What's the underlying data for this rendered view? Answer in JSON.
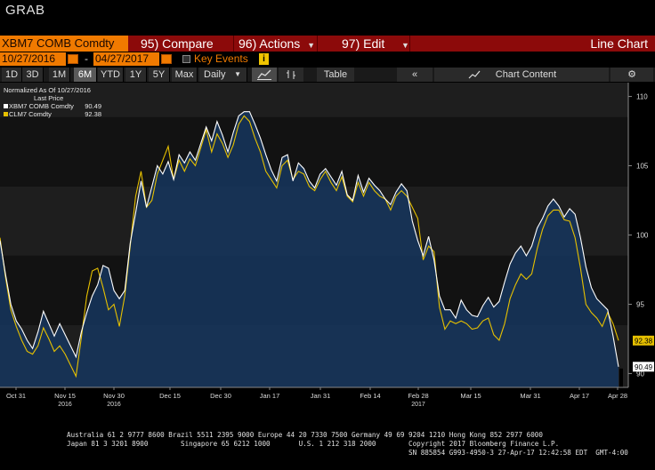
{
  "app": {
    "title": "GRAB"
  },
  "toolbar": {
    "ticker": "XBM7 COMB Comdty",
    "compare": {
      "num": "95)",
      "label": "Compare"
    },
    "actions": {
      "num": "96)",
      "label": "Actions"
    },
    "edit": {
      "num": "97)",
      "label": "Edit"
    },
    "view_title": "Line Chart"
  },
  "range": {
    "start": "10/27/2016",
    "end": "04/27/2017",
    "key_events": "Key Events",
    "info_badge": "i"
  },
  "periods": [
    "1D",
    "3D",
    "1M",
    "6M",
    "YTD",
    "1Y",
    "5Y",
    "Max"
  ],
  "active_period": "6M",
  "frequency": "Daily",
  "table_label": "Table",
  "chart_content_label": "Chart Content",
  "colors": {
    "accent_orange": "#f07a00",
    "cmd_red": "#8c0a0a",
    "series1": "#ffffff",
    "series2": "#e6c000",
    "area": "#16365e"
  },
  "legend": {
    "header": "Normalized As Of 10/27/2016",
    "sub": "Last Price",
    "items": [
      {
        "name": "XBM7 COMB Comdty",
        "value": "90.49",
        "color": "#ffffff"
      },
      {
        "name": "CLM7 Comdty",
        "value": "92.38",
        "color": "#e6c000"
      }
    ]
  },
  "chart_data": {
    "type": "line",
    "ylim": [
      89,
      111
    ],
    "y_ticks": [
      90,
      95,
      100,
      105,
      110
    ],
    "x_ticks": [
      {
        "label": "Oct 31",
        "year": ""
      },
      {
        "label": "Nov 15",
        "year": "2016"
      },
      {
        "label": "Nov 30",
        "year": "2016"
      },
      {
        "label": "Dec 15",
        "year": ""
      },
      {
        "label": "Dec 30",
        "year": ""
      },
      {
        "label": "Jan 17",
        "year": ""
      },
      {
        "label": "Jan 31",
        "year": ""
      },
      {
        "label": "Feb 14",
        "year": ""
      },
      {
        "label": "Feb 28",
        "year": "2017"
      },
      {
        "label": "Mar 15",
        "year": ""
      },
      {
        "label": "Mar 31",
        "year": ""
      },
      {
        "label": "Apr 17",
        "year": ""
      },
      {
        "label": "Apr 28",
        "year": ""
      }
    ],
    "series": [
      {
        "name": "XBM7 COMB Comdty",
        "last": "90.49",
        "values": [
          99.6,
          97.2,
          95.0,
          93.8,
          93.2,
          92.4,
          91.8,
          93.0,
          94.5,
          93.6,
          92.7,
          93.6,
          92.8,
          92.0,
          91.2,
          93.0,
          94.4,
          95.6,
          96.4,
          97.8,
          97.6,
          96.0,
          95.4,
          96.0,
          99.4,
          101.6,
          103.9,
          102.0,
          103.5,
          105.0,
          104.4,
          105.3,
          104.0,
          105.8,
          105.2,
          106.0,
          105.4,
          106.6,
          107.8,
          106.8,
          108.2,
          107.2,
          106.0,
          107.4,
          108.6,
          108.9,
          108.9,
          108.0,
          107.0,
          105.8,
          104.7,
          103.9,
          105.6,
          105.8,
          103.9,
          105.2,
          104.8,
          103.9,
          103.4,
          104.4,
          104.8,
          104.2,
          103.6,
          104.6,
          102.9,
          102.5,
          104.3,
          103.1,
          104.1,
          103.6,
          103.2,
          102.6,
          102.2,
          103.1,
          103.7,
          103.2,
          101.0,
          99.6,
          98.5,
          99.9,
          98.2,
          95.6,
          94.6,
          94.6,
          94.0,
          95.3,
          94.6,
          94.2,
          94.1,
          94.9,
          95.5,
          94.8,
          95.2,
          96.6,
          97.9,
          98.7,
          99.2,
          98.5,
          99.2,
          100.5,
          101.2,
          102.1,
          102.6,
          102.1,
          101.3,
          101.9,
          101.5,
          99.8,
          97.7,
          96.2,
          95.4,
          95.0,
          94.6,
          92.7,
          90.49
        ]
      },
      {
        "name": "CLM7 Comdty",
        "last": "92.38",
        "values": [
          99.8,
          97.0,
          94.6,
          93.4,
          92.4,
          91.6,
          91.4,
          92.0,
          93.3,
          92.5,
          91.6,
          92.0,
          91.4,
          90.6,
          89.8,
          92.6,
          95.6,
          97.4,
          97.6,
          96.2,
          94.6,
          95.0,
          93.4,
          95.6,
          99.2,
          102.8,
          104.6,
          102.0,
          102.5,
          104.4,
          105.4,
          106.4,
          104.0,
          105.4,
          104.6,
          105.5,
          105.0,
          106.3,
          107.6,
          106.0,
          107.3,
          106.6,
          105.6,
          106.5,
          108.0,
          108.6,
          108.2,
          107.0,
          106.0,
          104.6,
          104.0,
          103.4,
          105.0,
          105.4,
          104.0,
          104.6,
          104.4,
          103.5,
          103.2,
          104.0,
          104.6,
          103.8,
          103.2,
          104.2,
          102.8,
          102.4,
          103.8,
          102.8,
          103.8,
          103.2,
          102.8,
          102.6,
          101.8,
          102.8,
          103.2,
          102.8,
          102.0,
          101.2,
          98.2,
          99.2,
          98.8,
          94.8,
          93.2,
          93.8,
          93.6,
          93.8,
          93.6,
          93.2,
          93.3,
          93.8,
          94.0,
          92.8,
          92.4,
          93.6,
          95.4,
          96.4,
          97.2,
          96.8,
          97.2,
          99.0,
          100.4,
          101.4,
          101.8,
          101.8,
          101.1,
          101.0,
          99.8,
          97.6,
          95.0,
          94.4,
          94.0,
          93.4,
          94.4,
          93.6,
          92.38
        ]
      }
    ]
  },
  "footer": {
    "line1": "Australia 61 2 9777 8600 Brazil 5511 2395 9000 Europe 44 20 7330 7500 Germany 49 69 9204 1210 Hong Kong 852 2977 6000",
    "line2": "Japan 81 3 3201 8900        Singapore 65 6212 1000       U.S. 1 212 318 2000        Copyright 2017 Bloomberg Finance L.P.",
    "line3": "SN 885854 G993-4950-3 27-Apr-17 12:42:58 EDT  GMT-4:00"
  }
}
